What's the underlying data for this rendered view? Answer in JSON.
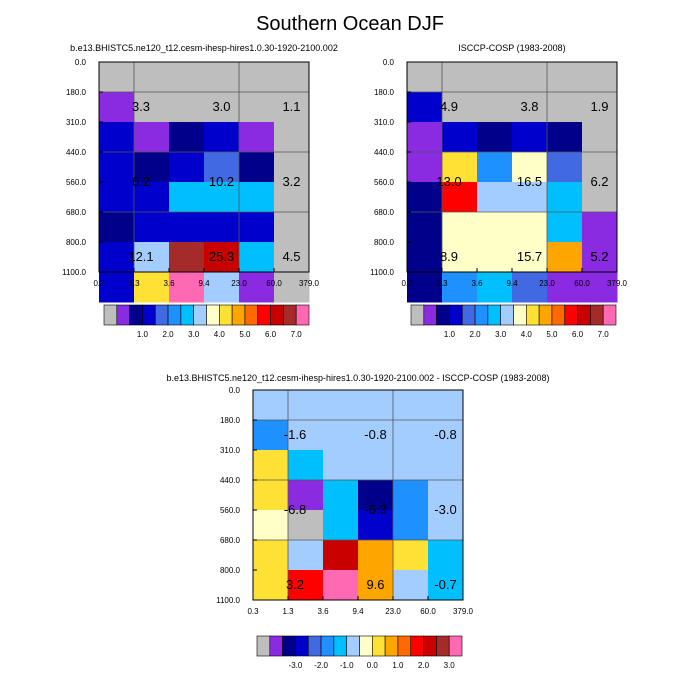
{
  "title": "Southern Ocean DJF",
  "colors": {
    "seq": [
      "#bebebe",
      "#8a2be2",
      "#00008b",
      "#0000cd",
      "#4169e1",
      "#1e90ff",
      "#00bfff",
      "#a4cdff",
      "#ffffc8",
      "#ffe135",
      "#ffa500",
      "#ff6a00",
      "#ff0000",
      "#c80000",
      "#a52a2a",
      "#ff69b4"
    ],
    "div": [
      "#bebebe",
      "#8a2be2",
      "#00008b",
      "#0000cd",
      "#4169e1",
      "#1e90ff",
      "#00bfff",
      "#a4cdff",
      "#ffffc8",
      "#ffe135",
      "#ffa500",
      "#ff6a00",
      "#ff0000",
      "#c80000",
      "#a52a2a",
      "#ff69b4"
    ]
  },
  "chart_data": [
    {
      "type": "heatmap",
      "title": "b.e13.BHISTC5.ne120_t12.cesm-ihesp-hires1.0.30-1920-2100.002",
      "x_ticks": [
        "0.3",
        "1.3",
        "3.6",
        "9.4",
        "23.0",
        "60.0",
        "379.0"
      ],
      "y_ticks": [
        "0.0",
        "180.0",
        "310.0",
        "440.0",
        "560.0",
        "680.0",
        "800.0",
        "1100.0"
      ],
      "cells": [
        [
          0,
          0,
          0,
          0,
          0,
          0
        ],
        [
          1,
          0,
          0,
          0,
          0,
          0
        ],
        [
          3,
          1,
          2,
          3,
          1,
          0
        ],
        [
          3,
          2,
          3,
          4,
          2,
          0
        ],
        [
          3,
          3,
          6,
          6,
          6,
          0
        ],
        [
          2,
          3,
          3,
          3,
          3,
          0
        ],
        [
          3,
          7,
          14,
          13,
          6,
          0
        ],
        [
          3,
          9,
          15,
          7,
          1,
          0
        ]
      ],
      "block_labels": [
        {
          "text": "3.3",
          "col": 0.75,
          "row": 1.5
        },
        {
          "text": "3.0",
          "col": 3.0,
          "row": 1.5
        },
        {
          "text": "1.1",
          "col": 5.0,
          "row": 1.5
        },
        {
          "text": "6.2",
          "col": 0.75,
          "row": 4.0
        },
        {
          "text": "10.2",
          "col": 3.0,
          "row": 4.0
        },
        {
          "text": "3.2",
          "col": 5.0,
          "row": 4.0
        },
        {
          "text": "12.1",
          "col": 0.75,
          "row": 6.5
        },
        {
          "text": "25.3",
          "col": 3.0,
          "row": 6.5
        },
        {
          "text": "4.5",
          "col": 5.0,
          "row": 6.5
        }
      ],
      "colorbar_labels": [
        "1.0",
        "2.0",
        "3.0",
        "4.0",
        "5.0",
        "6.0",
        "7.0"
      ],
      "colorbar": "seq"
    },
    {
      "type": "heatmap",
      "title": "ISCCP-COSP (1983-2008)",
      "x_ticks": [
        "0.3",
        "1.3",
        "3.6",
        "9.4",
        "23.0",
        "60.0",
        "379.0"
      ],
      "y_ticks": [
        "0.0",
        "180.0",
        "310.0",
        "440.0",
        "560.0",
        "680.0",
        "800.0",
        "1100.0"
      ],
      "cells": [
        [
          0,
          0,
          0,
          0,
          0,
          0
        ],
        [
          3,
          0,
          0,
          0,
          0,
          0
        ],
        [
          1,
          3,
          2,
          3,
          2,
          0
        ],
        [
          1,
          9,
          5,
          8,
          4,
          0
        ],
        [
          2,
          12,
          7,
          7,
          6,
          0
        ],
        [
          2,
          8,
          8,
          8,
          6,
          1
        ],
        [
          2,
          8,
          8,
          8,
          10,
          1
        ],
        [
          2,
          5,
          6,
          4,
          1,
          1
        ]
      ],
      "block_labels": [
        {
          "text": "4.9",
          "col": 0.75,
          "row": 1.5
        },
        {
          "text": "3.8",
          "col": 3.0,
          "row": 1.5
        },
        {
          "text": "1.9",
          "col": 5.0,
          "row": 1.5
        },
        {
          "text": "13.0",
          "col": 0.75,
          "row": 4.0
        },
        {
          "text": "16.5",
          "col": 3.0,
          "row": 4.0
        },
        {
          "text": "6.2",
          "col": 5.0,
          "row": 4.0
        },
        {
          "text": "8.9",
          "col": 0.75,
          "row": 6.5
        },
        {
          "text": "15.7",
          "col": 3.0,
          "row": 6.5
        },
        {
          "text": "5.2",
          "col": 5.0,
          "row": 6.5
        }
      ],
      "colorbar_labels": [
        "1.0",
        "2.0",
        "3.0",
        "4.0",
        "5.0",
        "6.0",
        "7.0"
      ],
      "colorbar": "seq"
    },
    {
      "type": "heatmap",
      "title": "b.e13.BHISTC5.ne120_t12.cesm-ihesp-hires1.0.30-1920-2100.002 - ISCCP-COSP (1983-2008)",
      "x_ticks": [
        "0.3",
        "1.3",
        "3.6",
        "9.4",
        "23.0",
        "60.0",
        "379.0"
      ],
      "y_ticks": [
        "0.0",
        "180.0",
        "310.0",
        "440.0",
        "560.0",
        "680.0",
        "800.0",
        "1100.0"
      ],
      "cells": [
        [
          7,
          7,
          7,
          7,
          7,
          7
        ],
        [
          5,
          7,
          7,
          7,
          7,
          7
        ],
        [
          9,
          6,
          7,
          7,
          7,
          7
        ],
        [
          9,
          1,
          6,
          2,
          5,
          7
        ],
        [
          8,
          0,
          6,
          3,
          5,
          7
        ],
        [
          9,
          7,
          13,
          10,
          9,
          6
        ],
        [
          9,
          12,
          15,
          10,
          7,
          6
        ]
      ],
      "cell_rows": [
        0,
        1,
        2,
        3,
        4,
        5,
        6
      ],
      "block_labels": [
        {
          "text": "-1.6",
          "col": 0.75,
          "row": 1.5
        },
        {
          "text": "-0.8",
          "col": 3.0,
          "row": 1.5
        },
        {
          "text": "-0.8",
          "col": 5.0,
          "row": 1.5
        },
        {
          "text": "-6.8",
          "col": 0.75,
          "row": 4.0
        },
        {
          "text": "-6.3",
          "col": 3.0,
          "row": 4.0
        },
        {
          "text": "-3.0",
          "col": 5.0,
          "row": 4.0
        },
        {
          "text": "3.2",
          "col": 0.75,
          "row": 6.5
        },
        {
          "text": "9.6",
          "col": 3.0,
          "row": 6.5
        },
        {
          "text": "-0.7",
          "col": 5.0,
          "row": 6.5
        }
      ],
      "colorbar_labels": [
        "-3.0",
        "-2.0",
        "-1.0",
        "0.0",
        "1.0",
        "2.0",
        "3.0"
      ],
      "colorbar": "div"
    }
  ]
}
